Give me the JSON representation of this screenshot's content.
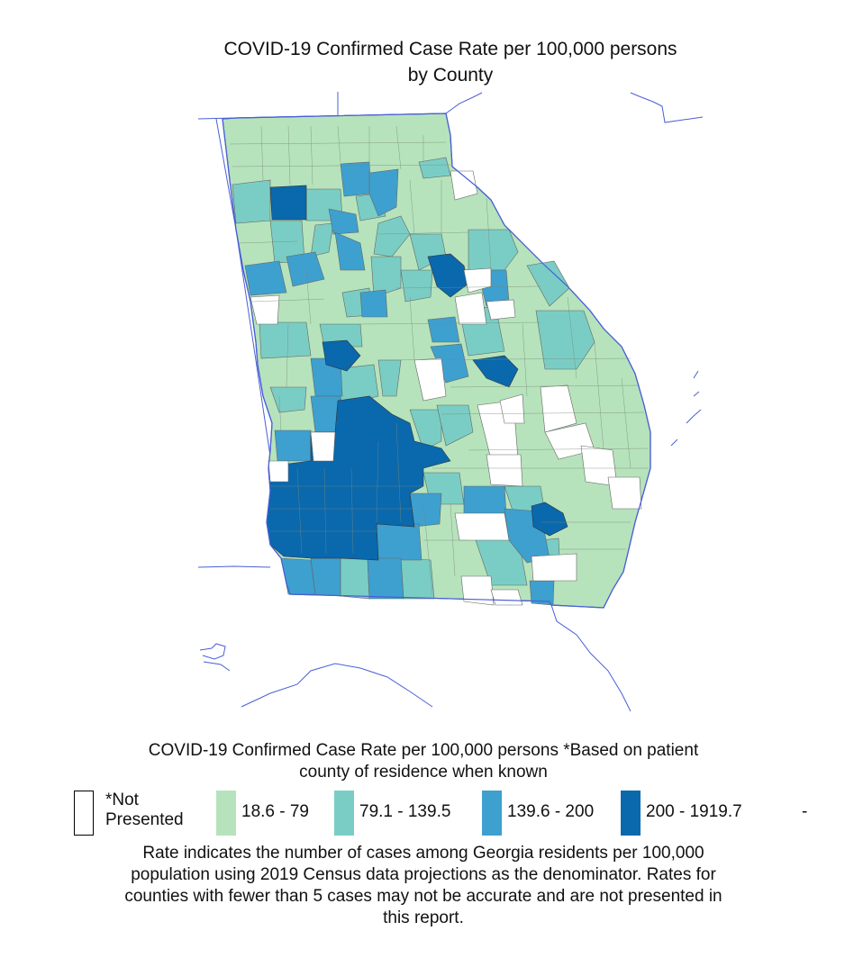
{
  "title": {
    "line1": "COVID-19 Confirmed Case Rate per 100,000 persons",
    "line2": "by County"
  },
  "legend": {
    "title_line1": "COVID-19 Confirmed Case Rate per 100,000 persons *Based on patient",
    "title_line2": "county of residence when known",
    "items": [
      {
        "label_line1": "*Not",
        "label_line2": "Presented",
        "color": "#ffffff",
        "outline": "#000000"
      },
      {
        "label": "18.6  -  79",
        "color": "#b6e3bb"
      },
      {
        "label": "79.1  -  139.5",
        "color": "#7acdc4"
      },
      {
        "label": "139.6  -  200",
        "color": "#3da0cf"
      },
      {
        "label": "200  -  1919.7",
        "color": "#0a68ad"
      }
    ],
    "trailing": "-"
  },
  "note": {
    "line1": "Rate indicates the number of cases among Georgia residents per 100,000",
    "line2": "population using 2019 Census data projections as the denominator. Rates for",
    "line3": "counties with fewer than 5 cases may not be accurate and are not presented in",
    "line4": "this report."
  },
  "colors": {
    "state_border": "#4a5fd6",
    "county_border": "#666666"
  }
}
